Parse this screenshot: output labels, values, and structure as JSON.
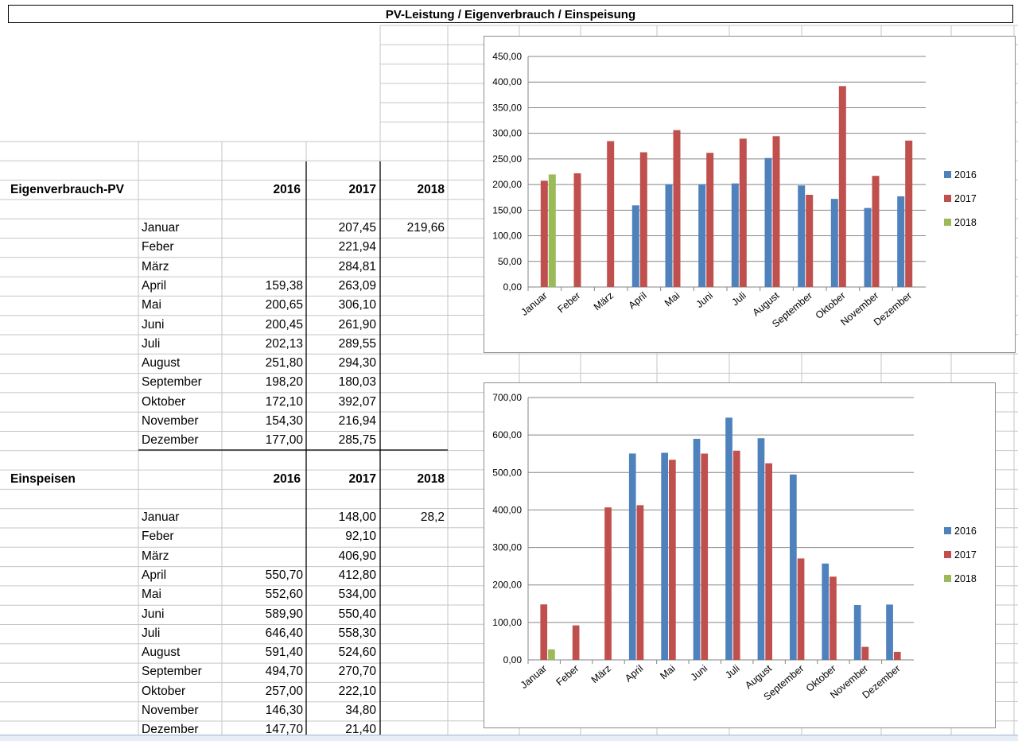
{
  "title": "PV-Leistung / Eigenverbrauch / Einspeisung",
  "table1": {
    "heading": "Eigenverbrauch-PV",
    "years": [
      "2016",
      "2017",
      "2018"
    ],
    "rows": [
      {
        "month": "Januar",
        "v2016": "",
        "v2017": "207,45",
        "v2018": "219,66"
      },
      {
        "month": "Feber",
        "v2016": "",
        "v2017": "221,94",
        "v2018": ""
      },
      {
        "month": "März",
        "v2016": "",
        "v2017": "284,81",
        "v2018": ""
      },
      {
        "month": "April",
        "v2016": "159,38",
        "v2017": "263,09",
        "v2018": ""
      },
      {
        "month": "Mai",
        "v2016": "200,65",
        "v2017": "306,10",
        "v2018": ""
      },
      {
        "month": "Juni",
        "v2016": "200,45",
        "v2017": "261,90",
        "v2018": ""
      },
      {
        "month": "Juli",
        "v2016": "202,13",
        "v2017": "289,55",
        "v2018": ""
      },
      {
        "month": "August",
        "v2016": "251,80",
        "v2017": "294,30",
        "v2018": ""
      },
      {
        "month": "September",
        "v2016": "198,20",
        "v2017": "180,03",
        "v2018": ""
      },
      {
        "month": "Oktober",
        "v2016": "172,10",
        "v2017": "392,07",
        "v2018": ""
      },
      {
        "month": "November",
        "v2016": "154,30",
        "v2017": "216,94",
        "v2018": ""
      },
      {
        "month": "Dezember",
        "v2016": "177,00",
        "v2017": "285,75",
        "v2018": ""
      }
    ]
  },
  "table2": {
    "heading": "Einspeisen",
    "years": [
      "2016",
      "2017",
      "2018"
    ],
    "rows": [
      {
        "month": "Januar",
        "v2016": "",
        "v2017": "148,00",
        "v2018": "28,2"
      },
      {
        "month": "Feber",
        "v2016": "",
        "v2017": "92,10",
        "v2018": ""
      },
      {
        "month": "März",
        "v2016": "",
        "v2017": "406,90",
        "v2018": ""
      },
      {
        "month": "April",
        "v2016": "550,70",
        "v2017": "412,80",
        "v2018": ""
      },
      {
        "month": "Mai",
        "v2016": "552,60",
        "v2017": "534,00",
        "v2018": ""
      },
      {
        "month": "Juni",
        "v2016": "589,90",
        "v2017": "550,40",
        "v2018": ""
      },
      {
        "month": "Juli",
        "v2016": "646,40",
        "v2017": "558,30",
        "v2018": ""
      },
      {
        "month": "August",
        "v2016": "591,40",
        "v2017": "524,60",
        "v2018": ""
      },
      {
        "month": "September",
        "v2016": "494,70",
        "v2017": "270,70",
        "v2018": ""
      },
      {
        "month": "Oktober",
        "v2016": "257,00",
        "v2017": "222,10",
        "v2018": ""
      },
      {
        "month": "November",
        "v2016": "146,30",
        "v2017": "34,80",
        "v2018": ""
      },
      {
        "month": "Dezember",
        "v2016": "147,70",
        "v2017": "21,40",
        "v2018": ""
      }
    ]
  },
  "colors": {
    "s2016": "#4f81bd",
    "s2017": "#c0504d",
    "s2018": "#9bbb59",
    "grid": "#c6c6c6",
    "gridline": "#868686"
  },
  "chart_data": [
    {
      "type": "bar",
      "title": "",
      "categories": [
        "Januar",
        "Feber",
        "März",
        "April",
        "Mai",
        "Juni",
        "Juli",
        "August",
        "September",
        "Oktober",
        "November",
        "Dezember"
      ],
      "series": [
        {
          "name": "2016",
          "values": [
            null,
            null,
            null,
            159.38,
            200.65,
            200.45,
            202.13,
            251.8,
            198.2,
            172.1,
            154.3,
            177.0
          ]
        },
        {
          "name": "2017",
          "values": [
            207.45,
            221.94,
            284.81,
            263.09,
            306.1,
            261.9,
            289.55,
            294.3,
            180.03,
            392.07,
            216.94,
            285.75
          ]
        },
        {
          "name": "2018",
          "values": [
            219.66,
            null,
            null,
            null,
            null,
            null,
            null,
            null,
            null,
            null,
            null,
            null
          ]
        }
      ],
      "ylim": [
        0,
        450
      ],
      "yticks": [
        "0,00",
        "50,00",
        "100,00",
        "150,00",
        "200,00",
        "250,00",
        "300,00",
        "350,00",
        "400,00",
        "450,00"
      ],
      "legend": "right",
      "grid": true
    },
    {
      "type": "bar",
      "title": "",
      "categories": [
        "Januar",
        "Feber",
        "März",
        "April",
        "Mai",
        "Juni",
        "Juli",
        "August",
        "September",
        "Oktober",
        "November",
        "Dezember"
      ],
      "series": [
        {
          "name": "2016",
          "values": [
            null,
            null,
            null,
            550.7,
            552.6,
            589.9,
            646.4,
            591.4,
            494.7,
            257.0,
            146.3,
            147.7
          ]
        },
        {
          "name": "2017",
          "values": [
            148.0,
            92.1,
            406.9,
            412.8,
            534.0,
            550.4,
            558.3,
            524.6,
            270.7,
            222.1,
            34.8,
            21.4
          ]
        },
        {
          "name": "2018",
          "values": [
            28.2,
            null,
            null,
            null,
            null,
            null,
            null,
            null,
            null,
            null,
            null,
            null
          ]
        }
      ],
      "ylim": [
        0,
        700
      ],
      "yticks": [
        "0,00",
        "100,00",
        "200,00",
        "300,00",
        "400,00",
        "500,00",
        "600,00",
        "700,00"
      ],
      "legend": "right",
      "grid": true
    }
  ]
}
